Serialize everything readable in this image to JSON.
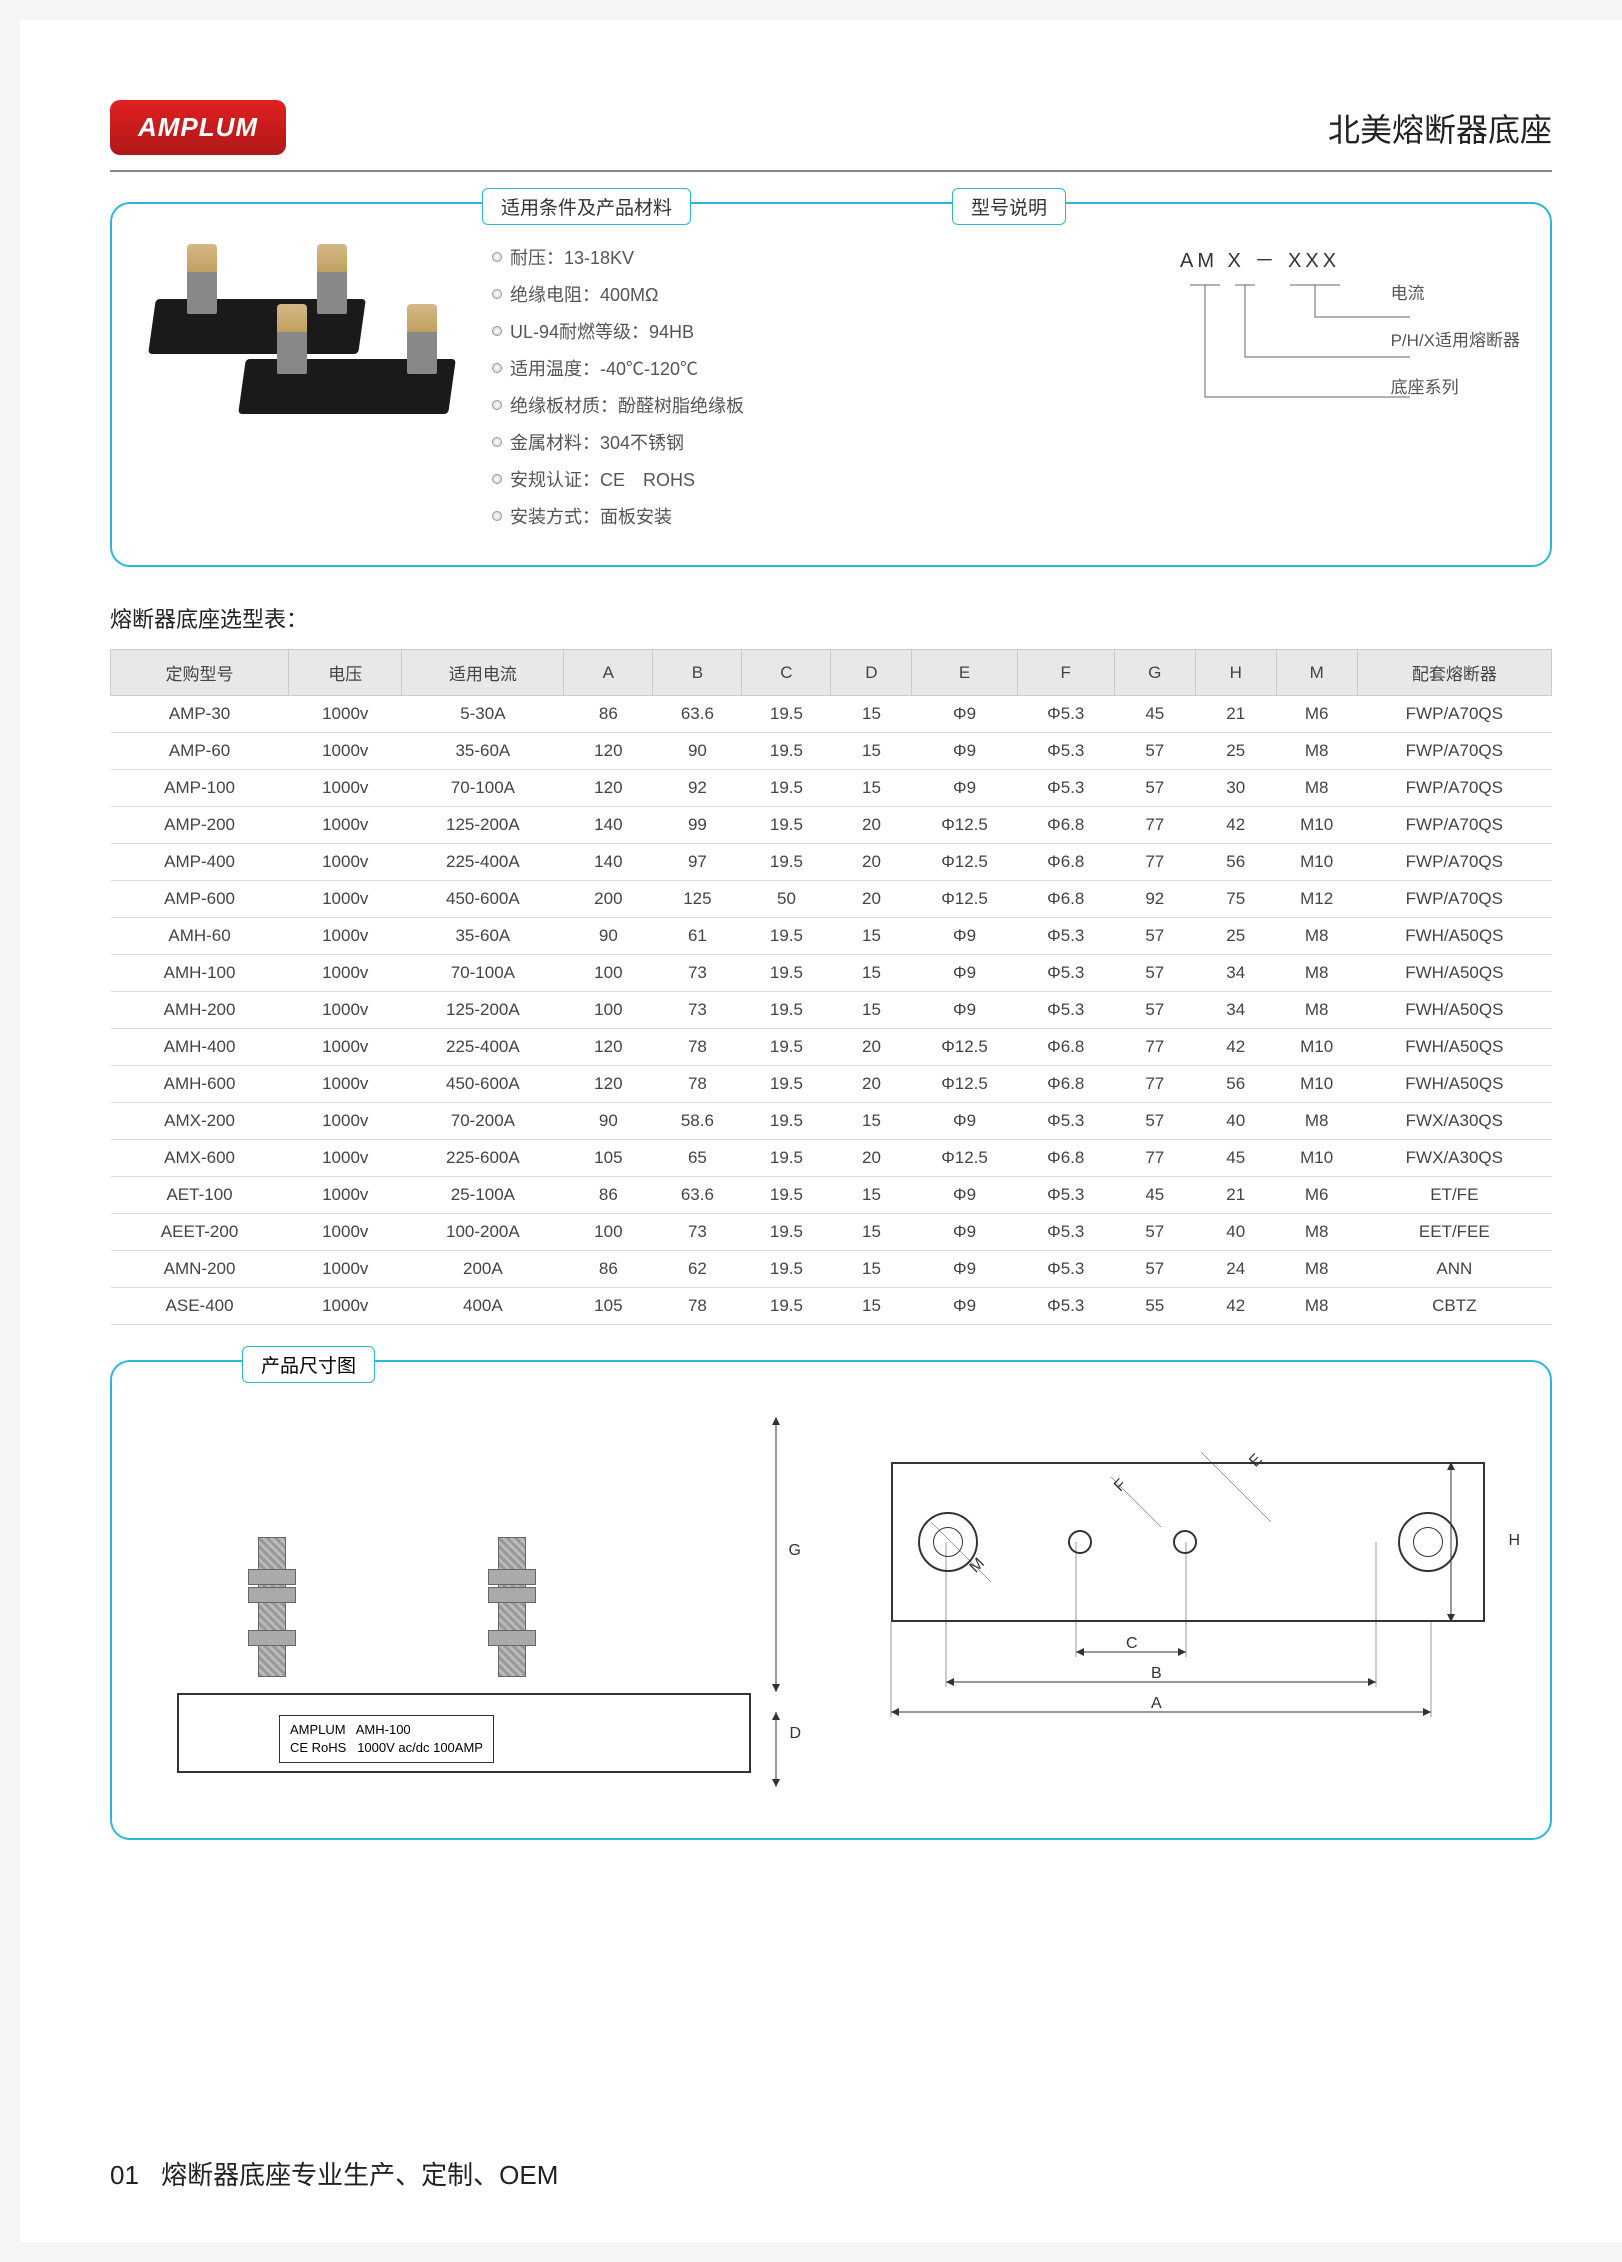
{
  "logo": "AMPLUM",
  "page_title": "北美熔断器底座",
  "panel": {
    "conditions_label": "适用条件及产品材料",
    "model_label": "型号说明",
    "specs": [
      "耐压：13-18KV",
      "绝缘电阻：400MΩ",
      "UL-94耐燃等级：94HB",
      "适用温度：-40℃-120℃",
      "绝缘板材质：酚醛树脂绝缘板",
      "金属材料：304不锈钢",
      "安规认证：CE　ROHS",
      "安装方式：面板安装"
    ],
    "model_code": "AM X － XXX",
    "model_legend": [
      "电流",
      "P/H/X适用熔断器",
      "底座系列"
    ]
  },
  "table_title": "熔断器底座选型表：",
  "table": {
    "columns": [
      "定购型号",
      "电压",
      "适用电流",
      "A",
      "B",
      "C",
      "D",
      "E",
      "F",
      "G",
      "H",
      "M",
      "配套熔断器"
    ],
    "col_widths": [
      "11%",
      "7%",
      "10%",
      "5.5%",
      "5.5%",
      "5.5%",
      "5%",
      "6.5%",
      "6%",
      "5%",
      "5%",
      "5%",
      "12%"
    ],
    "header_bg": "#e8e8e8",
    "row_border": "#dddddd",
    "rows": [
      [
        "AMP-30",
        "1000v",
        "5-30A",
        "86",
        "63.6",
        "19.5",
        "15",
        "Φ9",
        "Φ5.3",
        "45",
        "21",
        "M6",
        "FWP/A70QS"
      ],
      [
        "AMP-60",
        "1000v",
        "35-60A",
        "120",
        "90",
        "19.5",
        "15",
        "Φ9",
        "Φ5.3",
        "57",
        "25",
        "M8",
        "FWP/A70QS"
      ],
      [
        "AMP-100",
        "1000v",
        "70-100A",
        "120",
        "92",
        "19.5",
        "15",
        "Φ9",
        "Φ5.3",
        "57",
        "30",
        "M8",
        "FWP/A70QS"
      ],
      [
        "AMP-200",
        "1000v",
        "125-200A",
        "140",
        "99",
        "19.5",
        "20",
        "Φ12.5",
        "Φ6.8",
        "77",
        "42",
        "M10",
        "FWP/A70QS"
      ],
      [
        "AMP-400",
        "1000v",
        "225-400A",
        "140",
        "97",
        "19.5",
        "20",
        "Φ12.5",
        "Φ6.8",
        "77",
        "56",
        "M10",
        "FWP/A70QS"
      ],
      [
        "AMP-600",
        "1000v",
        "450-600A",
        "200",
        "125",
        "50",
        "20",
        "Φ12.5",
        "Φ6.8",
        "92",
        "75",
        "M12",
        "FWP/A70QS"
      ],
      [
        "AMH-60",
        "1000v",
        "35-60A",
        "90",
        "61",
        "19.5",
        "15",
        "Φ9",
        "Φ5.3",
        "57",
        "25",
        "M8",
        "FWH/A50QS"
      ],
      [
        "AMH-100",
        "1000v",
        "70-100A",
        "100",
        "73",
        "19.5",
        "15",
        "Φ9",
        "Φ5.3",
        "57",
        "34",
        "M8",
        "FWH/A50QS"
      ],
      [
        "AMH-200",
        "1000v",
        "125-200A",
        "100",
        "73",
        "19.5",
        "15",
        "Φ9",
        "Φ5.3",
        "57",
        "34",
        "M8",
        "FWH/A50QS"
      ],
      [
        "AMH-400",
        "1000v",
        "225-400A",
        "120",
        "78",
        "19.5",
        "20",
        "Φ12.5",
        "Φ6.8",
        "77",
        "42",
        "M10",
        "FWH/A50QS"
      ],
      [
        "AMH-600",
        "1000v",
        "450-600A",
        "120",
        "78",
        "19.5",
        "20",
        "Φ12.5",
        "Φ6.8",
        "77",
        "56",
        "M10",
        "FWH/A50QS"
      ],
      [
        "AMX-200",
        "1000v",
        "70-200A",
        "90",
        "58.6",
        "19.5",
        "15",
        "Φ9",
        "Φ5.3",
        "57",
        "40",
        "M8",
        "FWX/A30QS"
      ],
      [
        "AMX-600",
        "1000v",
        "225-600A",
        "105",
        "65",
        "19.5",
        "20",
        "Φ12.5",
        "Φ6.8",
        "77",
        "45",
        "M10",
        "FWX/A30QS"
      ],
      [
        "AET-100",
        "1000v",
        "25-100A",
        "86",
        "63.6",
        "19.5",
        "15",
        "Φ9",
        "Φ5.3",
        "45",
        "21",
        "M6",
        "ET/FE"
      ],
      [
        "AEET-200",
        "1000v",
        "100-200A",
        "100",
        "73",
        "19.5",
        "15",
        "Φ9",
        "Φ5.3",
        "57",
        "40",
        "M8",
        "EET/FEE"
      ],
      [
        "AMN-200",
        "1000v",
        "200A",
        "86",
        "62",
        "19.5",
        "15",
        "Φ9",
        "Φ5.3",
        "57",
        "24",
        "M8",
        "ANN"
      ],
      [
        "ASE-400",
        "1000v",
        "400A",
        "105",
        "78",
        "19.5",
        "15",
        "Φ9",
        "Φ5.3",
        "55",
        "42",
        "M8",
        "CBTZ"
      ]
    ]
  },
  "dimension": {
    "label": "产品尺寸图",
    "brand": "AMPLUM",
    "model": "AMH-100",
    "cert": "CE RoHS",
    "rating": "1000V ac/dc 100AMP",
    "letters": {
      "G": "G",
      "D": "D",
      "H": "H",
      "A": "A",
      "B": "B",
      "C": "C",
      "M": "M",
      "E": "E",
      "F": "F"
    }
  },
  "footer": {
    "num": "01",
    "text": "熔断器底座专业生产、定制、OEM"
  },
  "colors": {
    "accent": "#2bb8d4",
    "logo_bg": "#d01c1c",
    "text": "#444444"
  }
}
